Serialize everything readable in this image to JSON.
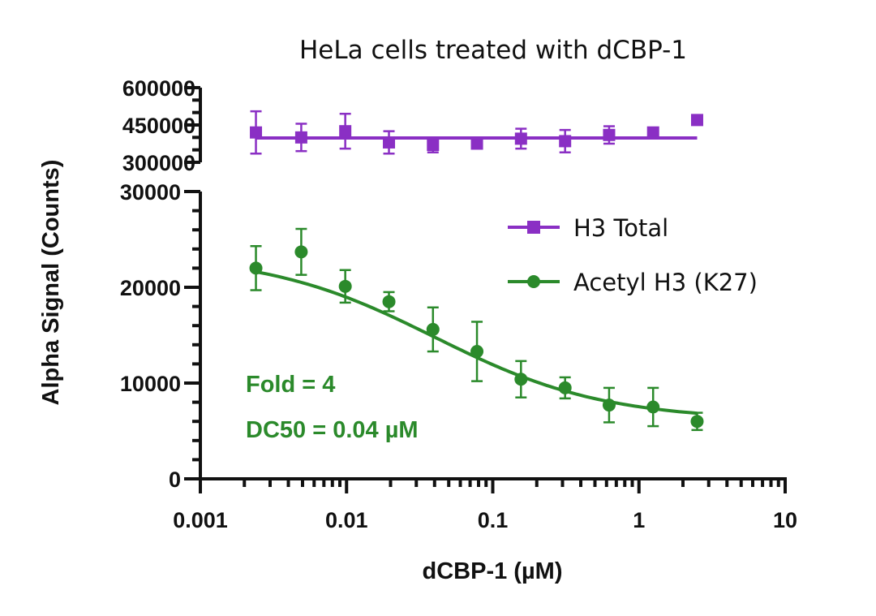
{
  "chart_data": {
    "type": "scatter",
    "title": "HeLa cells treated with dCBP-1",
    "xlabel": "dCBP-1 (µM)",
    "ylabel": "Alpha Signal (Counts)",
    "x_scale": "log",
    "xlim": [
      0.001,
      10
    ],
    "x_tick_labels": [
      "0.001",
      "0.01",
      "0.1",
      "1",
      "10"
    ],
    "y_axis_segments": [
      {
        "range": [
          300000,
          600000
        ],
        "tick_labels": [
          "600000",
          "450000",
          "300000"
        ]
      },
      {
        "range": [
          0,
          30000
        ],
        "tick_labels": [
          "30000",
          "20000",
          "10000",
          "0"
        ]
      }
    ],
    "legend_position": "right",
    "colors": {
      "h3_total": "#8a2fc4",
      "acetyl": "#2b8a2b"
    },
    "series": [
      {
        "name": "H3 Total",
        "marker": "square",
        "color": "#8a2fc4",
        "x": [
          0.0024,
          0.0049,
          0.0098,
          0.0195,
          0.039,
          0.078,
          0.156,
          0.3125,
          0.625,
          1.25,
          2.5
        ],
        "y": [
          420000,
          400000,
          425000,
          380000,
          370000,
          375000,
          395000,
          385000,
          410000,
          420000,
          470000
        ],
        "err": [
          85000,
          55000,
          70000,
          45000,
          30000,
          15000,
          40000,
          45000,
          35000,
          15000,
          15000
        ],
        "fit": {
          "type": "constant",
          "value": 398000
        }
      },
      {
        "name": "Acetyl H3 (K27)",
        "marker": "circle",
        "color": "#2b8a2b",
        "x": [
          0.0024,
          0.0049,
          0.0098,
          0.0195,
          0.039,
          0.078,
          0.156,
          0.3125,
          0.625,
          1.25,
          2.5
        ],
        "y": [
          22000,
          23700,
          20100,
          18500,
          15600,
          13300,
          10400,
          9500,
          7700,
          7500,
          6000
        ],
        "err": [
          2300,
          2400,
          1700,
          1000,
          2300,
          3100,
          1900,
          1100,
          1800,
          2000,
          900
        ],
        "fit": {
          "type": "sigmoid",
          "top": 23500,
          "bottom": 6100,
          "ec50": 0.04,
          "hill": 0.75
        }
      }
    ],
    "annotations": [
      "Fold = 4",
      "DC50 = 0.04 µM"
    ]
  }
}
